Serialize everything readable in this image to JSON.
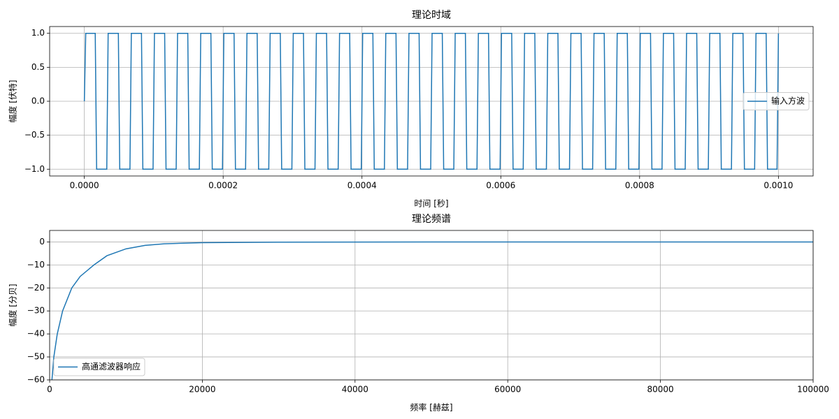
{
  "chart_data": [
    {
      "type": "line",
      "title": "理论时域",
      "xlabel": "时间 [秒]",
      "ylabel": "幅度 [伏特]",
      "xlim": [
        -5e-05,
        0.00105
      ],
      "ylim": [
        -1.1,
        1.1
      ],
      "xticks": [
        {
          "value": 0,
          "label": "0.0000"
        },
        {
          "value": 0.0002,
          "label": "0.0002"
        },
        {
          "value": 0.0004,
          "label": "0.0004"
        },
        {
          "value": 0.0006,
          "label": "0.0006"
        },
        {
          "value": 0.0008,
          "label": "0.0008"
        },
        {
          "value": 0.001,
          "label": "0.0010"
        }
      ],
      "yticks": [
        {
          "value": -1,
          "label": "−1.0"
        },
        {
          "value": -0.5,
          "label": "−0.5"
        },
        {
          "value": 0,
          "label": "0.0"
        },
        {
          "value": 0.5,
          "label": "0.5"
        },
        {
          "value": 1,
          "label": "1.0"
        }
      ],
      "grid": true,
      "legend": "center right",
      "x": [
        0,
        2e-06,
        1.57e-05,
        1.77e-05,
        3.23e-05,
        3.43e-05,
        4.9e-05,
        5.1e-05,
        6.57e-05,
        6.77e-05,
        8.23e-05,
        8.43e-05,
        9.9e-05,
        0.000101,
        0.0001157,
        0.0001177,
        0.0001323,
        0.0001343,
        0.000149,
        0.000151,
        0.0001657,
        0.0001677,
        0.0001823,
        0.0001843,
        0.000199,
        0.000201,
        0.0002157,
        0.0002177,
        0.0002323,
        0.0002343,
        0.000249,
        0.000251,
        0.0002657,
        0.0002677,
        0.0002823,
        0.0002843,
        0.000299,
        0.000301,
        0.0003157,
        0.0003177,
        0.0003323,
        0.0003343,
        0.000349,
        0.000351,
        0.0003657,
        0.0003677,
        0.0003823,
        0.0003843,
        0.000399,
        0.000401,
        0.0004157,
        0.0004177,
        0.0004323,
        0.0004343,
        0.000449,
        0.000451,
        0.0004657,
        0.0004677,
        0.0004823,
        0.0004843,
        0.000499,
        0.000501,
        0.0005157,
        0.0005177,
        0.0005323,
        0.0005343,
        0.000549,
        0.000551,
        0.0005657,
        0.0005677,
        0.0005823,
        0.0005843,
        0.000599,
        0.000601,
        0.0006157,
        0.0006177,
        0.0006323,
        0.0006343,
        0.000649,
        0.000651,
        0.0006657,
        0.0006677,
        0.0006823,
        0.0006843,
        0.000699,
        0.000701,
        0.0007157,
        0.0007177,
        0.0007323,
        0.0007343,
        0.000749,
        0.000751,
        0.0007657,
        0.0007677,
        0.0007823,
        0.0007843,
        0.000799,
        0.000801,
        0.0008157,
        0.0008177,
        0.0008323,
        0.0008343,
        0.000849,
        0.000851,
        0.0008657,
        0.0008677,
        0.0008823,
        0.0008843,
        0.000899,
        0.000901,
        0.0009157,
        0.0009177,
        0.0009323,
        0.0009343,
        0.000949,
        0.000951,
        0.0009657,
        0.0009677,
        0.0009823,
        0.0009843,
        0.000998,
        0.001
      ],
      "series": [
        {
          "name": "输入方波",
          "color": "#1f77b4",
          "values": [
            0,
            1,
            1,
            -1,
            -1,
            1,
            1,
            -1,
            -1,
            1,
            1,
            -1,
            -1,
            1,
            1,
            -1,
            -1,
            1,
            1,
            -1,
            -1,
            1,
            1,
            -1,
            -1,
            1,
            1,
            -1,
            -1,
            1,
            1,
            -1,
            -1,
            1,
            1,
            -1,
            -1,
            1,
            1,
            -1,
            -1,
            1,
            1,
            -1,
            -1,
            1,
            1,
            -1,
            -1,
            1,
            1,
            -1,
            -1,
            1,
            1,
            -1,
            -1,
            1,
            1,
            -1,
            -1,
            1,
            1,
            -1,
            -1,
            1,
            1,
            -1,
            -1,
            1,
            1,
            -1,
            -1,
            1,
            1,
            -1,
            -1,
            1,
            1,
            -1,
            -1,
            1,
            1,
            -1,
            -1,
            1,
            1,
            -1,
            -1,
            1,
            1,
            -1,
            -1,
            1,
            1,
            -1,
            -1,
            1,
            1,
            -1,
            -1,
            1,
            1,
            -1,
            -1,
            1,
            1,
            -1,
            -1,
            1,
            1,
            -1,
            -1,
            1,
            1,
            -1,
            -1,
            1,
            1,
            -1,
            -1,
            1
          ]
        }
      ]
    },
    {
      "type": "line",
      "title": "理论频谱",
      "xlabel": "频率 [赫兹]",
      "ylabel": "幅度 [分贝]",
      "xlim": [
        0,
        100000
      ],
      "ylim": [
        -60,
        5
      ],
      "xticks": [
        0,
        20000,
        40000,
        60000,
        80000,
        100000
      ],
      "yticks": [
        {
          "value": -60,
          "label": "−60"
        },
        {
          "value": -50,
          "label": "−50"
        },
        {
          "value": -40,
          "label": "−40"
        },
        {
          "value": -30,
          "label": "−30"
        },
        {
          "value": -20,
          "label": "−20"
        },
        {
          "value": -10,
          "label": "−10"
        },
        0
      ],
      "grid": true,
      "legend": "lower left",
      "x": [
        300,
        550,
        1000,
        1700,
        2900,
        4000,
        5800,
        7500,
        10000,
        12500,
        15000,
        20000,
        30000,
        50000,
        100000
      ],
      "series": [
        {
          "name": "高通滤波器响应",
          "color": "#1f77b4",
          "values": [
            -60,
            -50,
            -40,
            -30,
            -20,
            -15,
            -10,
            -6,
            -3,
            -1.5,
            -0.8,
            -0.3,
            -0.1,
            0,
            0
          ]
        }
      ]
    }
  ]
}
